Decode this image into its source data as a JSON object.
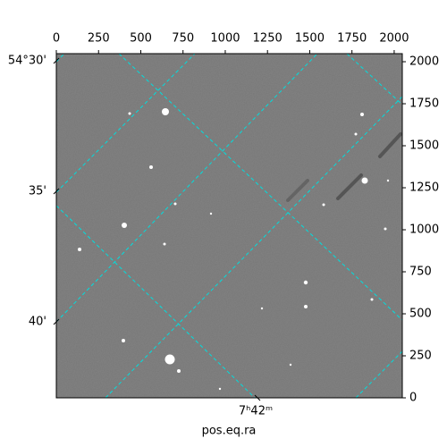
{
  "chart_data": {
    "type": "image",
    "xlabel": "pos.eq.ra",
    "xlim": [
      0,
      2048
    ],
    "xticks": [
      0,
      250,
      500,
      750,
      1000,
      1250,
      1500,
      1750,
      2000
    ],
    "ylim": [
      0,
      2048
    ],
    "yticks": [
      0,
      250,
      500,
      750,
      1000,
      1250,
      1500,
      1750,
      2000
    ],
    "dec_ticks": [
      {
        "value": 54.5,
        "label": "54°30'"
      },
      {
        "value": 54.583333,
        "label": "35'"
      },
      {
        "value": 54.666667,
        "label": "40'"
      }
    ],
    "ra_ticks": [
      {
        "value": 115.5,
        "label": "7ʰ42ᵐ"
      }
    ],
    "grid": true,
    "grid_color": "#00dede"
  }
}
